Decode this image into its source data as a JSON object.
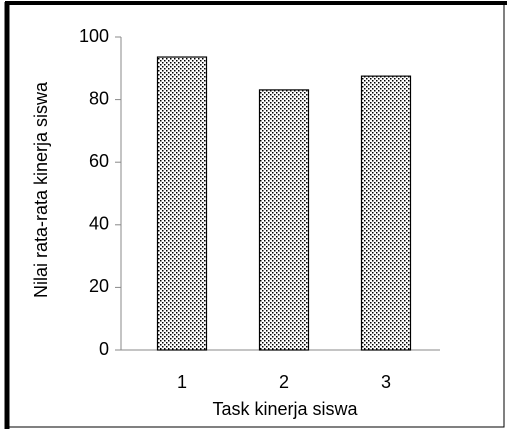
{
  "chart_data": {
    "type": "bar",
    "y_label": "Nilai rata-rata kinerja siswa",
    "x_label": "Task kinerja siswa",
    "categories": [
      "1",
      "2",
      "3"
    ],
    "values": [
      93.6,
      83.1,
      87.5
    ],
    "color": "#000000",
    "ylim": [
      0,
      100
    ],
    "yticks": [
      0,
      20,
      40,
      60,
      80,
      100
    ],
    "grid": false
  }
}
